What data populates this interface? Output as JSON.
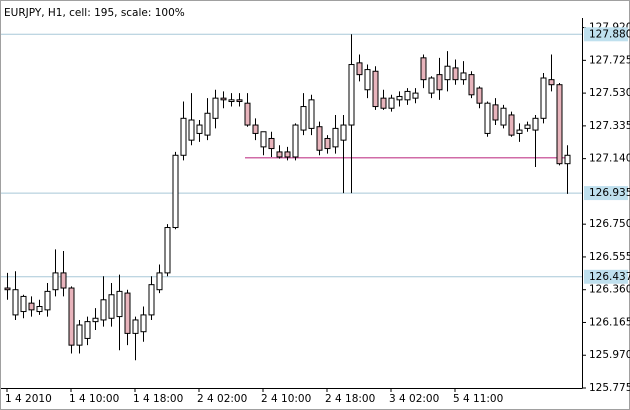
{
  "chart_data": {
    "type": "candlestick",
    "title": "EURJPY, H1, cell: 195, scale: 100%",
    "categories": [
      "1 4 2010",
      null,
      null,
      null,
      null,
      null,
      null,
      null,
      "1 4 10:00",
      null,
      null,
      null,
      null,
      null,
      null,
      null,
      "1 4 18:00",
      null,
      null,
      null,
      null,
      null,
      null,
      null,
      "2 4 02:00",
      null,
      null,
      null,
      null,
      null,
      null,
      null,
      "2 4 10:00",
      null,
      null,
      null,
      null,
      null,
      null,
      null,
      "2 4 18:00",
      null,
      null,
      null,
      null,
      null,
      null,
      null,
      "3 4 02:00",
      null,
      null,
      null,
      null,
      null,
      null,
      null,
      "5 4 11:00",
      null,
      null,
      null,
      null,
      null,
      null,
      null,
      null,
      null,
      null,
      null,
      null,
      null,
      null
    ],
    "open": [
      126.37,
      126.21,
      126.23,
      126.28,
      126.23,
      126.24,
      126.36,
      126.46,
      126.37,
      126.03,
      126.07,
      126.17,
      126.18,
      126.19,
      126.2,
      126.34,
      126.1,
      126.11,
      126.21,
      126.36,
      126.46,
      126.73,
      127.16,
      127.25,
      127.29,
      127.28,
      127.38,
      127.5,
      127.48,
      127.49,
      127.47,
      127.34,
      127.21,
      127.26,
      127.18,
      127.18,
      127.15,
      127.31,
      127.32,
      127.33,
      127.26,
      127.21,
      127.25,
      127.34,
      127.71,
      127.55,
      127.66,
      127.5,
      127.44,
      127.49,
      127.49,
      127.5,
      127.74,
      127.53,
      127.64,
      127.61,
      127.68,
      127.61,
      127.64,
      127.56,
      127.29,
      127.46,
      127.34,
      127.4,
      127.29,
      127.32,
      127.31,
      127.38,
      127.61,
      127.58,
      127.11
    ],
    "high": [
      126.46,
      126.47,
      126.33,
      126.32,
      126.3,
      126.4,
      126.6,
      126.59,
      126.38,
      126.18,
      126.2,
      126.25,
      126.44,
      126.4,
      126.45,
      126.36,
      126.2,
      126.26,
      126.44,
      126.51,
      126.75,
      127.18,
      127.48,
      127.53,
      127.37,
      127.5,
      127.55,
      127.54,
      127.53,
      127.53,
      127.53,
      127.38,
      127.3,
      127.3,
      127.22,
      127.21,
      127.35,
      127.53,
      127.52,
      127.36,
      127.28,
      127.4,
      127.4,
      127.88,
      127.76,
      127.7,
      127.69,
      127.55,
      127.52,
      127.54,
      127.56,
      127.56,
      127.76,
      127.63,
      127.74,
      127.78,
      127.73,
      127.72,
      127.66,
      127.57,
      127.48,
      127.5,
      127.46,
      127.42,
      127.35,
      127.36,
      127.4,
      127.65,
      127.76,
      127.59,
      127.22
    ],
    "low": [
      126.3,
      126.18,
      126.19,
      126.2,
      126.21,
      126.2,
      126.32,
      126.32,
      125.98,
      125.98,
      126.03,
      126.12,
      126.14,
      126.14,
      126.0,
      126.03,
      125.94,
      126.05,
      126.18,
      126.34,
      126.44,
      126.72,
      127.13,
      127.22,
      127.24,
      127.25,
      127.32,
      127.44,
      127.45,
      127.45,
      127.33,
      127.25,
      127.16,
      127.15,
      127.14,
      127.13,
      127.13,
      127.28,
      127.28,
      127.16,
      127.17,
      127.17,
      126.935,
      126.935,
      127.6,
      127.5,
      127.43,
      127.43,
      127.42,
      127.45,
      127.46,
      127.47,
      127.56,
      127.5,
      127.49,
      127.54,
      127.58,
      127.58,
      127.5,
      127.44,
      127.27,
      127.34,
      127.32,
      127.27,
      127.24,
      127.3,
      127.09,
      127.35,
      127.54,
      127.1,
      126.93
    ],
    "close": [
      126.36,
      126.36,
      126.32,
      126.24,
      126.26,
      126.35,
      126.46,
      126.37,
      126.03,
      126.15,
      126.17,
      126.19,
      126.3,
      126.33,
      126.35,
      126.1,
      126.18,
      126.21,
      126.39,
      126.46,
      126.73,
      127.16,
      127.38,
      127.37,
      127.34,
      127.41,
      127.5,
      127.49,
      127.49,
      127.48,
      127.34,
      127.29,
      127.3,
      127.2,
      127.15,
      127.15,
      127.34,
      127.45,
      127.49,
      127.19,
      127.2,
      127.32,
      127.34,
      127.7,
      127.64,
      127.67,
      127.45,
      127.44,
      127.5,
      127.51,
      127.54,
      127.53,
      127.61,
      127.62,
      127.55,
      127.69,
      127.61,
      127.65,
      127.52,
      127.47,
      127.47,
      127.37,
      127.44,
      127.28,
      127.31,
      127.34,
      127.38,
      127.62,
      127.58,
      127.11,
      127.16
    ],
    "up_color": "#ffffff",
    "down_color": "#e8b4bc",
    "ylim": [
      125.775,
      127.977
    ],
    "yticks": [
      {
        "value": 127.92,
        "label": "127.920"
      },
      127.725,
      {
        "value": 127.53,
        "label": "127.530"
      },
      127.335,
      {
        "value": 127.14,
        "label": "127.140"
      },
      {
        "value": 126.75,
        "label": "126.750"
      },
      126.555,
      {
        "value": 126.36,
        "label": "126.360"
      },
      126.165,
      {
        "value": 125.97,
        "label": "125.970"
      },
      125.775
    ],
    "levels": [
      {
        "value": 127.88,
        "label": "127.880"
      },
      126.935,
      126.437
    ],
    "level_color": "#a8c8d8",
    "trend_line": {
      "value": 127.145,
      "color": "#c03a8a"
    },
    "grid": false
  }
}
